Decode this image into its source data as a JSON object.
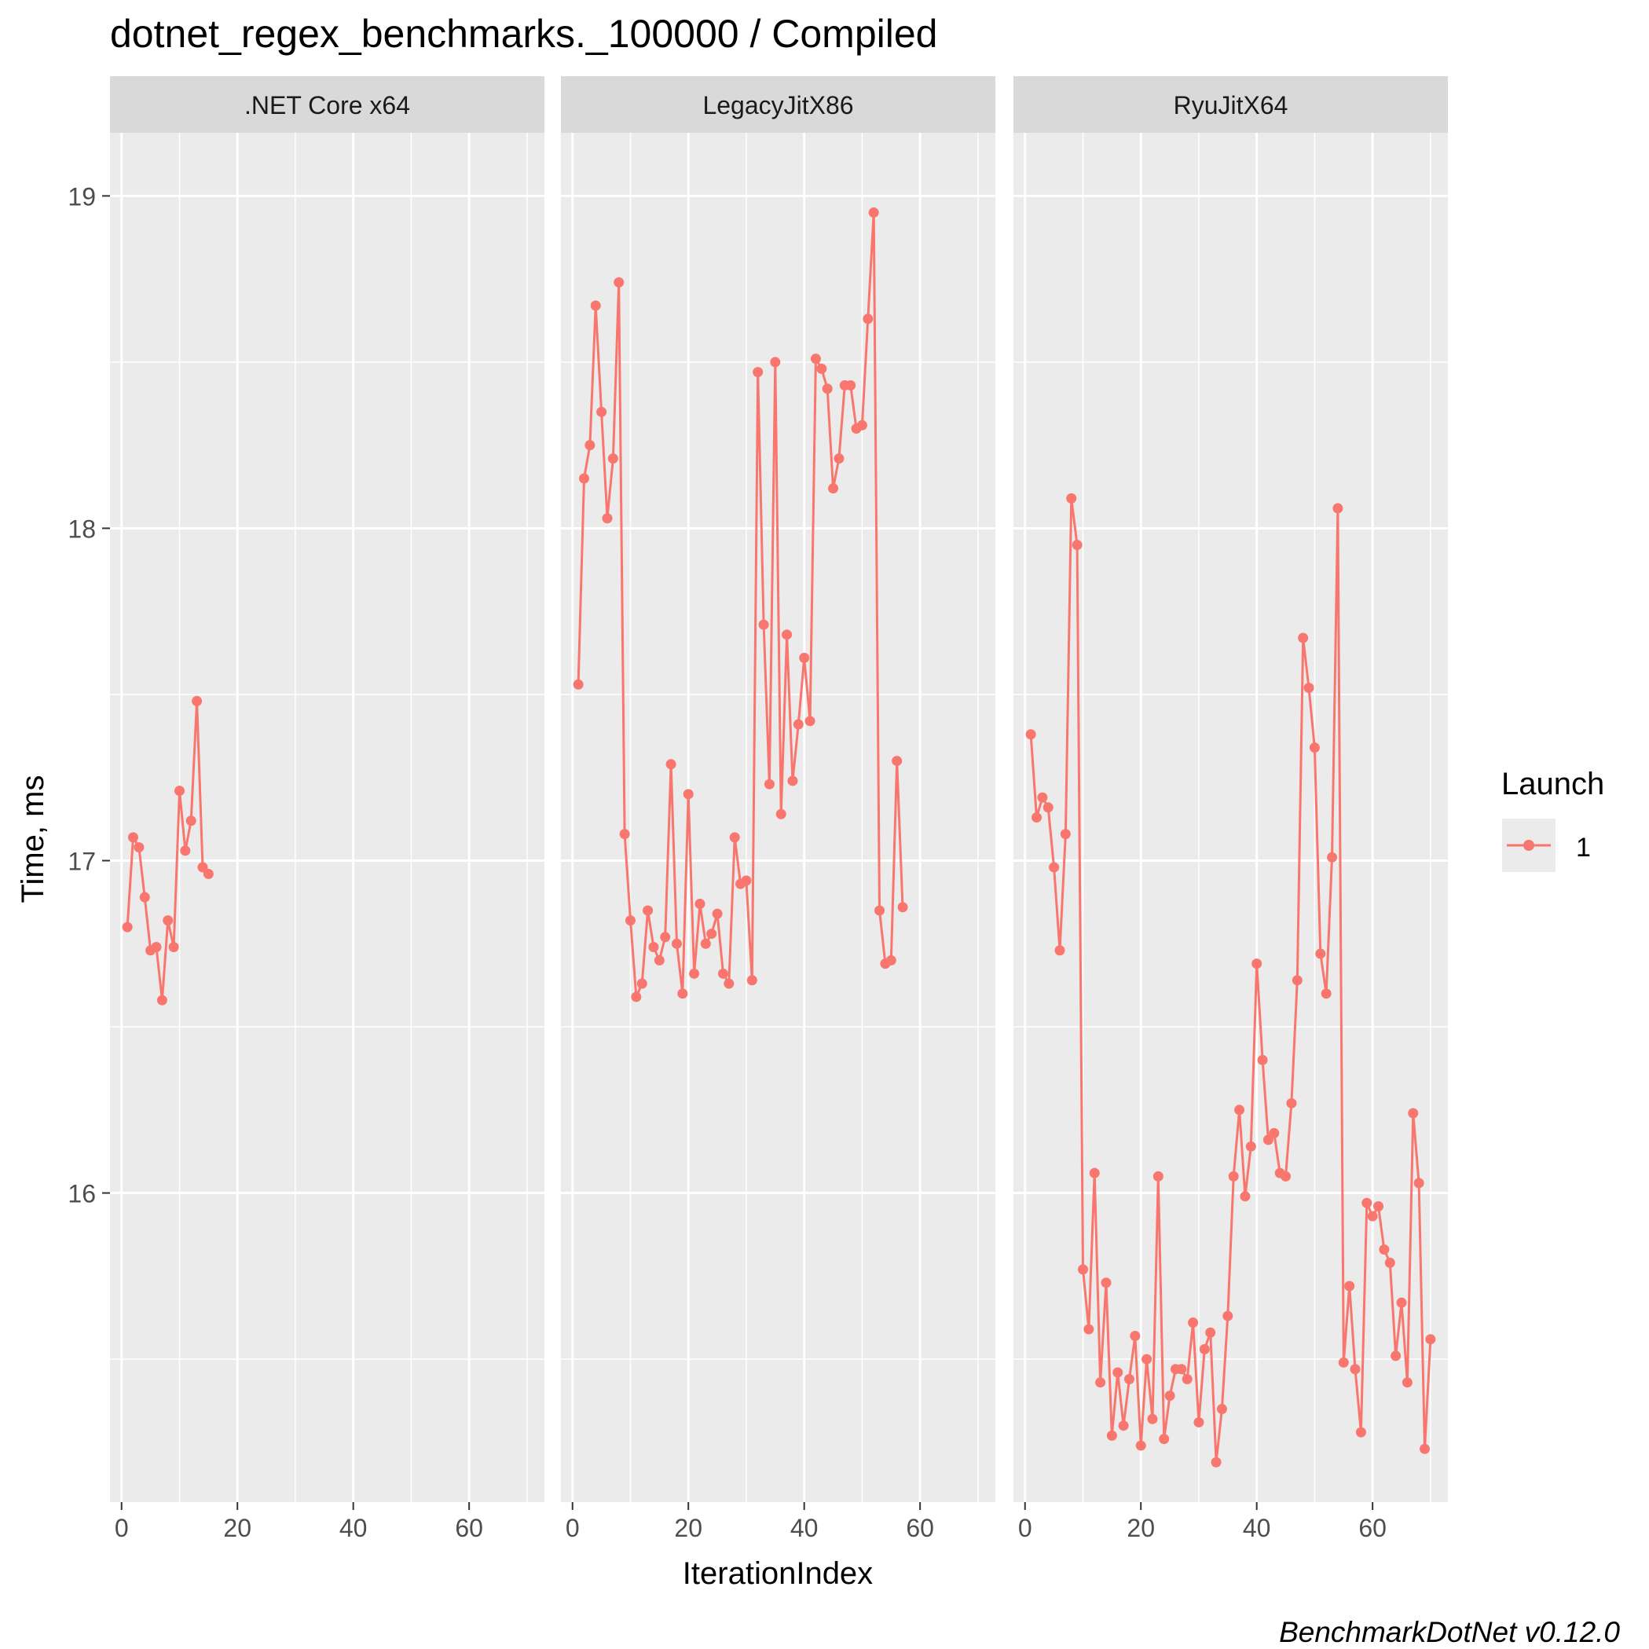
{
  "chart_data": {
    "type": "line",
    "title": "dotnet_regex_benchmarks._100000 / Compiled",
    "xlabel": "IterationIndex",
    "ylabel": "Time, ms",
    "caption": "BenchmarkDotNet v0.12.0",
    "xlim": [
      -2,
      73
    ],
    "ylim": [
      15.07,
      19.19
    ],
    "x_ticks": [
      0,
      20,
      40,
      60
    ],
    "x_tick_labels": [
      "0",
      "20",
      "40",
      "60"
    ],
    "y_ticks": [
      16,
      17,
      18,
      19
    ],
    "y_tick_labels": [
      "16",
      "17",
      "18",
      "19"
    ],
    "grid": true,
    "legend": {
      "title": "Launch",
      "position": "right",
      "entries": [
        "1"
      ]
    },
    "series_color": "#F8766D",
    "panels": [
      {
        "title": ".NET Core x64",
        "series": [
          {
            "name": "1",
            "x": [
              1,
              2,
              3,
              4,
              5,
              6,
              7,
              8,
              9,
              10,
              11,
              12,
              13,
              14,
              15
            ],
            "y": [
              16.8,
              17.07,
              17.04,
              16.89,
              16.73,
              16.74,
              16.58,
              16.82,
              16.74,
              17.21,
              17.03,
              17.12,
              17.48,
              16.98,
              16.96
            ]
          }
        ]
      },
      {
        "title": "LegacyJitX86",
        "series": [
          {
            "name": "1",
            "x": [
              1,
              2,
              3,
              4,
              5,
              6,
              7,
              8,
              9,
              10,
              11,
              12,
              13,
              14,
              15,
              16,
              17,
              18,
              19,
              20,
              21,
              22,
              23,
              24,
              25,
              26,
              27,
              28,
              29,
              30,
              31,
              32,
              33,
              34,
              35,
              36,
              37,
              38,
              39,
              40,
              41,
              42,
              43,
              44,
              45,
              46,
              47,
              48,
              49,
              50,
              51,
              52,
              53,
              54,
              55,
              56,
              57
            ],
            "y": [
              17.53,
              18.15,
              18.25,
              18.67,
              18.35,
              18.03,
              18.21,
              18.74,
              17.08,
              16.82,
              16.59,
              16.63,
              16.85,
              16.74,
              16.7,
              16.77,
              17.29,
              16.75,
              16.6,
              17.2,
              16.66,
              16.87,
              16.75,
              16.78,
              16.84,
              16.66,
              16.63,
              17.07,
              16.93,
              16.94,
              16.64,
              18.47,
              17.71,
              17.23,
              18.5,
              17.14,
              17.68,
              17.24,
              17.41,
              17.61,
              17.42,
              18.51,
              18.48,
              18.42,
              18.12,
              18.21,
              18.43,
              18.43,
              18.3,
              18.31,
              18.63,
              18.95,
              16.85,
              16.69,
              16.7,
              17.3,
              16.86
            ]
          }
        ]
      },
      {
        "title": "RyuJitX64",
        "series": [
          {
            "name": "1",
            "x": [
              1,
              2,
              3,
              4,
              5,
              6,
              7,
              8,
              9,
              10,
              11,
              12,
              13,
              14,
              15,
              16,
              17,
              18,
              19,
              20,
              21,
              22,
              23,
              24,
              25,
              26,
              27,
              28,
              29,
              30,
              31,
              32,
              33,
              34,
              35,
              36,
              37,
              38,
              39,
              40,
              41,
              42,
              43,
              44,
              45,
              46,
              47,
              48,
              49,
              50,
              51,
              52,
              53,
              54,
              55,
              56,
              57,
              58,
              59,
              60,
              61,
              62,
              63,
              64,
              65,
              66,
              67,
              68,
              69,
              70
            ],
            "y": [
              17.38,
              17.13,
              17.19,
              17.16,
              16.98,
              16.73,
              17.08,
              18.09,
              17.95,
              15.77,
              15.59,
              16.06,
              15.43,
              15.73,
              15.27,
              15.46,
              15.3,
              15.44,
              15.57,
              15.24,
              15.5,
              15.32,
              16.05,
              15.26,
              15.39,
              15.47,
              15.47,
              15.44,
              15.61,
              15.31,
              15.53,
              15.58,
              15.19,
              15.35,
              15.63,
              16.05,
              16.25,
              15.99,
              16.14,
              16.69,
              16.4,
              16.16,
              16.18,
              16.06,
              16.05,
              16.27,
              16.64,
              17.67,
              17.52,
              17.34,
              16.72,
              16.6,
              17.01,
              18.06,
              15.49,
              15.72,
              15.47,
              15.28,
              15.97,
              15.93,
              15.96,
              15.83,
              15.79,
              15.51,
              15.67,
              15.43,
              16.24,
              16.03,
              15.23,
              15.56
            ]
          }
        ]
      }
    ]
  }
}
